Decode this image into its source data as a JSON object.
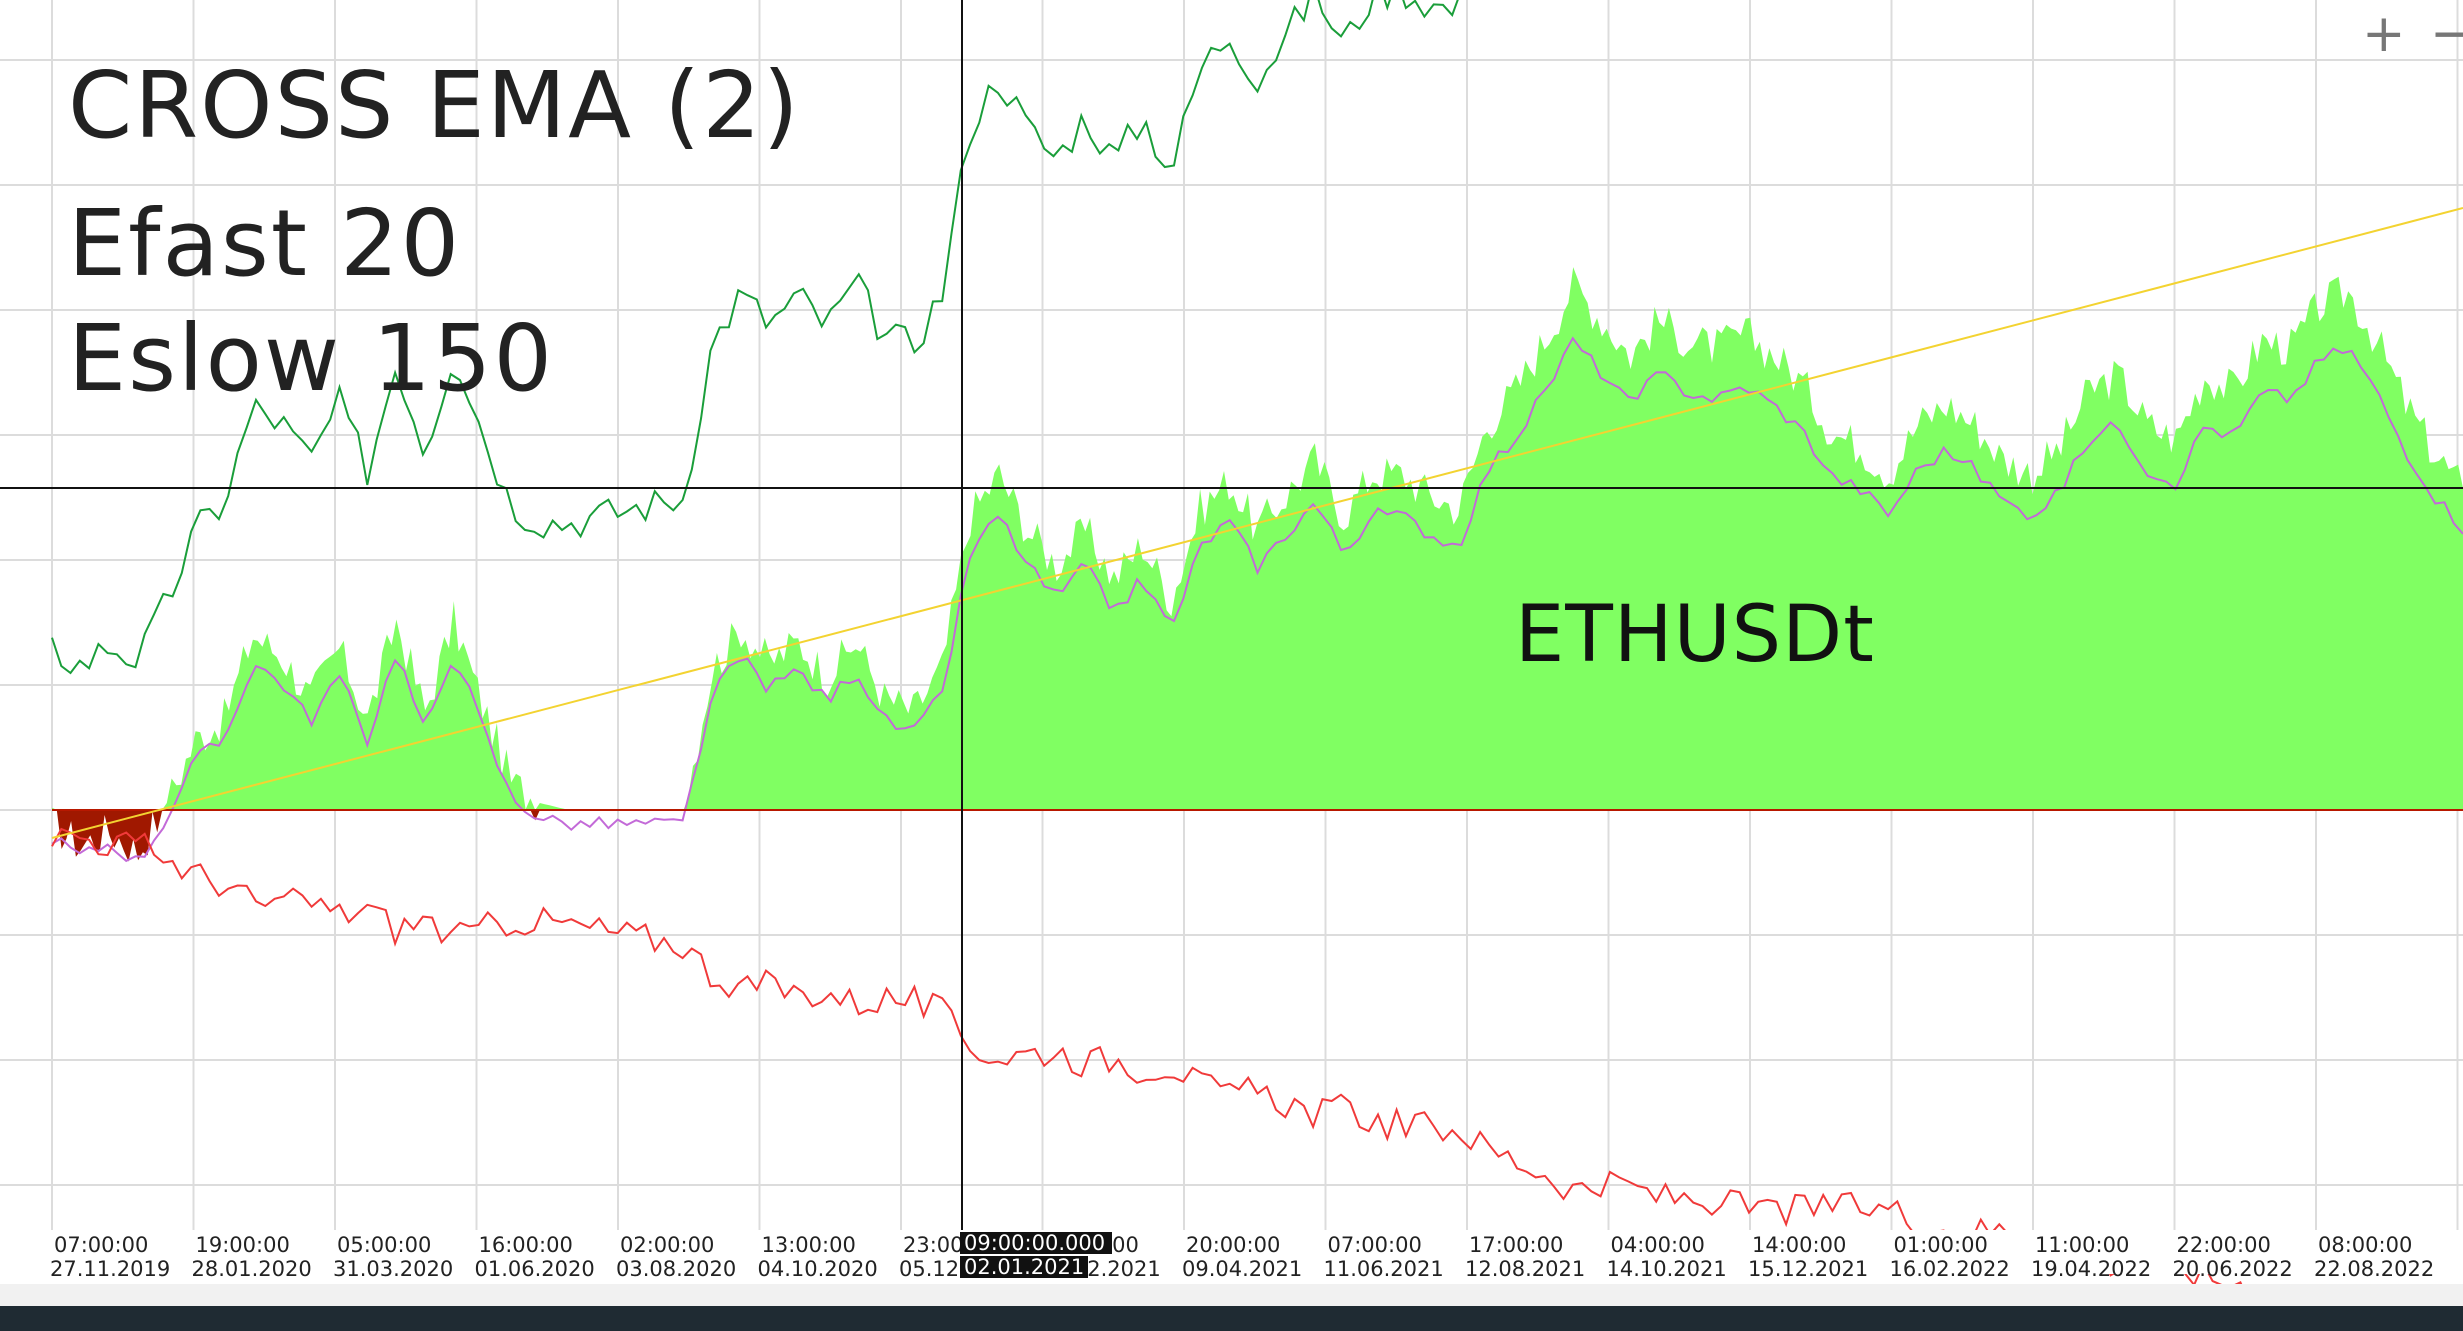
{
  "title": "CROSS EMA (2)",
  "params": {
    "fast": "Efast 20",
    "slow": "Eslow 150"
  },
  "symbol": "ETHUSDt",
  "zoom": {
    "in_label": "+",
    "out_label": "−"
  },
  "crosshair": {
    "label": "09:00:00.000",
    "date_label": "02.01.2021",
    "y_value": 0.46
  },
  "colors": {
    "fill_positive": "#80ff62",
    "fill_negative": "#a01800",
    "green_line": "#1a9e3a",
    "red_line": "#f03a3a",
    "purple_line": "#c36ad8",
    "trend_line": "#f3d331",
    "grid": "#dcdcdc",
    "zero_line": "#b81800"
  },
  "chart_data": {
    "type": "line",
    "title": "CROSS EMA (2)",
    "ylim": [
      -0.85,
      1.0
    ],
    "grid": true,
    "x_ticks": [
      {
        "time": "07:00:00",
        "date": "27.11.2019"
      },
      {
        "time": "19:00:00",
        "date": "28.01.2020"
      },
      {
        "time": "05:00:00",
        "date": "31.03.2020"
      },
      {
        "time": "16:00:00",
        "date": "01.06.2020"
      },
      {
        "time": "02:00:00",
        "date": "03.08.2020"
      },
      {
        "time": "13:00:00",
        "date": "04.10.2020"
      },
      {
        "time": "23:00:00",
        "date": "05.12.2020"
      },
      {
        "time": "09:00:00",
        "date": "07.02.2021"
      },
      {
        "time": "20:00:00",
        "date": "09.04.2021"
      },
      {
        "time": "07:00:00",
        "date": "11.06.2021"
      },
      {
        "time": "17:00:00",
        "date": "12.08.2021"
      },
      {
        "time": "04:00:00",
        "date": "14.10.2021"
      },
      {
        "time": "14:00:00",
        "date": "15.12.2021"
      },
      {
        "time": "01:00:00",
        "date": "16.02.2022"
      },
      {
        "time": "11:00:00",
        "date": "19.04.2022"
      },
      {
        "time": "22:00:00",
        "date": "20.06.2022"
      },
      {
        "time": "08:00:00",
        "date": "22.08.2022"
      }
    ],
    "series": [
      {
        "name": "ETHUSDt",
        "values": [
          -0.02,
          -0.05,
          -0.03,
          -0.06,
          0.01,
          0.1,
          0.13,
          0.25,
          0.22,
          0.16,
          0.23,
          0.13,
          0.27,
          0.14,
          0.27,
          0.15,
          0.04,
          0.01,
          0.0,
          0.0,
          0.0,
          0.0,
          0.0,
          0.2,
          0.26,
          0.21,
          0.24,
          0.19,
          0.24,
          0.16,
          0.14,
          0.2,
          0.42,
          0.48,
          0.4,
          0.35,
          0.4,
          0.33,
          0.38,
          0.3,
          0.43,
          0.47,
          0.4,
          0.45,
          0.5,
          0.42,
          0.48,
          0.48,
          0.45,
          0.43,
          0.55,
          0.6,
          0.67,
          0.75,
          0.7,
          0.65,
          0.7,
          0.67,
          0.66,
          0.68,
          0.65,
          0.61,
          0.54,
          0.52,
          0.48,
          0.55,
          0.58,
          0.55,
          0.5,
          0.48,
          0.52,
          0.6,
          0.62,
          0.55,
          0.53,
          0.62,
          0.6,
          0.67,
          0.66,
          0.72,
          0.74,
          0.67,
          0.58,
          0.51,
          0.46
        ]
      }
    ]
  }
}
